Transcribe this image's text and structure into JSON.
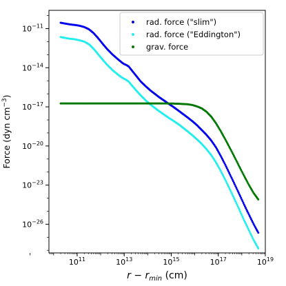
{
  "chart_data": {
    "type": "scatter",
    "xlabel_italic": "r − r",
    "xlabel_sub": "min",
    "xlabel_unit": " (cm)",
    "ylabel_text": "Force (dyn cm",
    "ylabel_exp": "−3",
    "ylabel_close": ")",
    "x_log": true,
    "y_log": true,
    "xlim_exp": [
      9.8,
      19.0
    ],
    "ylim_exp": [
      -28.2,
      -9.6
    ],
    "x_ticks": [
      {
        "base": "10",
        "exp": "11",
        "value_exp": 11
      },
      {
        "base": "10",
        "exp": "13",
        "value_exp": 13
      },
      {
        "base": "10",
        "exp": "15",
        "value_exp": 15
      },
      {
        "base": "10",
        "exp": "17",
        "value_exp": 17
      },
      {
        "base": "10",
        "exp": "19",
        "value_exp": 19
      }
    ],
    "y_ticks": [
      {
        "base": "10",
        "exp": "−11",
        "value_exp": -11
      },
      {
        "base": "10",
        "exp": "−14",
        "value_exp": -14
      },
      {
        "base": "10",
        "exp": "−17",
        "value_exp": -17
      },
      {
        "base": "10",
        "exp": "−20",
        "value_exp": -20
      },
      {
        "base": "10",
        "exp": "−23",
        "value_exp": -23
      },
      {
        "base": "10",
        "exp": "−26",
        "value_exp": -26
      }
    ],
    "grid": false,
    "legend_position": "top-right",
    "series": [
      {
        "name": "rad. force (\"slim\")",
        "color": "#0000ee",
        "points_log10": [
          [
            10.3,
            -10.55
          ],
          [
            10.5,
            -10.62
          ],
          [
            10.7,
            -10.68
          ],
          [
            10.9,
            -10.72
          ],
          [
            11.1,
            -10.78
          ],
          [
            11.3,
            -10.88
          ],
          [
            11.5,
            -11.05
          ],
          [
            11.7,
            -11.35
          ],
          [
            11.9,
            -11.75
          ],
          [
            12.1,
            -12.2
          ],
          [
            12.3,
            -12.62
          ],
          [
            12.5,
            -12.98
          ],
          [
            12.7,
            -13.3
          ],
          [
            12.9,
            -13.6
          ],
          [
            13.0,
            -13.72
          ],
          [
            13.1,
            -13.8
          ],
          [
            13.2,
            -13.92
          ],
          [
            13.3,
            -14.15
          ],
          [
            13.5,
            -14.6
          ],
          [
            13.7,
            -15.05
          ],
          [
            13.9,
            -15.4
          ],
          [
            14.1,
            -15.72
          ],
          [
            14.3,
            -16.0
          ],
          [
            14.5,
            -16.28
          ],
          [
            14.7,
            -16.52
          ],
          [
            14.9,
            -16.78
          ],
          [
            15.1,
            -17.02
          ],
          [
            15.3,
            -17.28
          ],
          [
            15.5,
            -17.55
          ],
          [
            15.7,
            -17.82
          ],
          [
            15.9,
            -18.1
          ],
          [
            16.1,
            -18.42
          ],
          [
            16.3,
            -18.78
          ],
          [
            16.5,
            -19.15
          ],
          [
            16.7,
            -19.58
          ],
          [
            16.9,
            -20.1
          ],
          [
            17.1,
            -20.75
          ],
          [
            17.3,
            -21.45
          ],
          [
            17.5,
            -22.2
          ],
          [
            17.7,
            -22.95
          ],
          [
            17.9,
            -23.72
          ],
          [
            18.1,
            -24.5
          ],
          [
            18.3,
            -25.25
          ],
          [
            18.5,
            -25.98
          ],
          [
            18.7,
            -26.65
          ]
        ]
      },
      {
        "name": "rad. force (\"Eddington\")",
        "color": "#22eeee",
        "points_log10": [
          [
            10.3,
            -11.65
          ],
          [
            10.5,
            -11.72
          ],
          [
            10.7,
            -11.78
          ],
          [
            10.9,
            -11.82
          ],
          [
            11.1,
            -11.9
          ],
          [
            11.3,
            -12.0
          ],
          [
            11.5,
            -12.2
          ],
          [
            11.7,
            -12.55
          ],
          [
            11.9,
            -12.98
          ],
          [
            12.1,
            -13.42
          ],
          [
            12.3,
            -13.82
          ],
          [
            12.5,
            -14.18
          ],
          [
            12.7,
            -14.48
          ],
          [
            12.9,
            -14.75
          ],
          [
            13.0,
            -14.85
          ],
          [
            13.1,
            -14.95
          ],
          [
            13.2,
            -15.08
          ],
          [
            13.3,
            -15.3
          ],
          [
            13.5,
            -15.72
          ],
          [
            13.7,
            -16.12
          ],
          [
            13.9,
            -16.48
          ],
          [
            14.1,
            -16.8
          ],
          [
            14.3,
            -17.08
          ],
          [
            14.5,
            -17.35
          ],
          [
            14.7,
            -17.6
          ],
          [
            14.9,
            -17.85
          ],
          [
            15.1,
            -18.08
          ],
          [
            15.3,
            -18.33
          ],
          [
            15.5,
            -18.6
          ],
          [
            15.7,
            -18.88
          ],
          [
            15.9,
            -19.18
          ],
          [
            16.1,
            -19.5
          ],
          [
            16.3,
            -19.85
          ],
          [
            16.5,
            -20.25
          ],
          [
            16.7,
            -20.7
          ],
          [
            16.9,
            -21.25
          ],
          [
            17.1,
            -21.9
          ],
          [
            17.3,
            -22.6
          ],
          [
            17.5,
            -23.35
          ],
          [
            17.7,
            -24.12
          ],
          [
            17.9,
            -24.9
          ],
          [
            18.1,
            -25.7
          ],
          [
            18.3,
            -26.45
          ],
          [
            18.5,
            -27.2
          ],
          [
            18.7,
            -27.85
          ]
        ]
      },
      {
        "name": "grav. force",
        "color": "#007700",
        "points_log10": [
          [
            10.3,
            -16.74
          ],
          [
            10.7,
            -16.74
          ],
          [
            11.1,
            -16.74
          ],
          [
            11.5,
            -16.74
          ],
          [
            11.9,
            -16.74
          ],
          [
            12.3,
            -16.74
          ],
          [
            12.7,
            -16.74
          ],
          [
            13.1,
            -16.74
          ],
          [
            13.5,
            -16.74
          ],
          [
            13.9,
            -16.74
          ],
          [
            14.3,
            -16.74
          ],
          [
            14.7,
            -16.74
          ],
          [
            15.1,
            -16.75
          ],
          [
            15.4,
            -16.77
          ],
          [
            15.7,
            -16.8
          ],
          [
            15.9,
            -16.86
          ],
          [
            16.1,
            -16.97
          ],
          [
            16.3,
            -17.12
          ],
          [
            16.5,
            -17.38
          ],
          [
            16.7,
            -17.75
          ],
          [
            16.9,
            -18.25
          ],
          [
            17.1,
            -18.85
          ],
          [
            17.3,
            -19.5
          ],
          [
            17.5,
            -20.18
          ],
          [
            17.7,
            -20.88
          ],
          [
            17.9,
            -21.6
          ],
          [
            18.1,
            -22.3
          ],
          [
            18.3,
            -22.98
          ],
          [
            18.5,
            -23.6
          ],
          [
            18.7,
            -24.1
          ]
        ]
      }
    ]
  }
}
